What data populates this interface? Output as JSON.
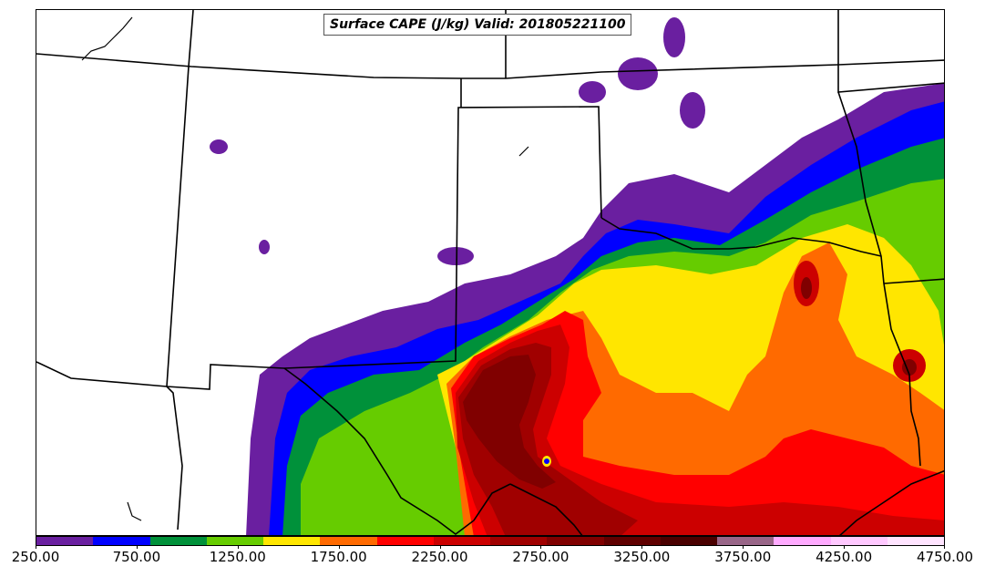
{
  "title": "Surface CAPE (J/kg) Valid: 201805221100",
  "colorbar": {
    "colors": [
      "#6a1fa0",
      "#0000ff",
      "#00913a",
      "#66cc00",
      "#ffe600",
      "#ff6a00",
      "#ff0000",
      "#cc0000",
      "#a00000",
      "#800000",
      "#600000",
      "#4a0000",
      "#996688",
      "#ffaaff",
      "#ffc8ff",
      "#ffe4ff"
    ],
    "tick_labels": [
      "250.00",
      "750.00",
      "1250.00",
      "1750.00",
      "2250.00",
      "2750.00",
      "3250.00",
      "3750.00",
      "4250.00",
      "4750.00"
    ]
  }
}
